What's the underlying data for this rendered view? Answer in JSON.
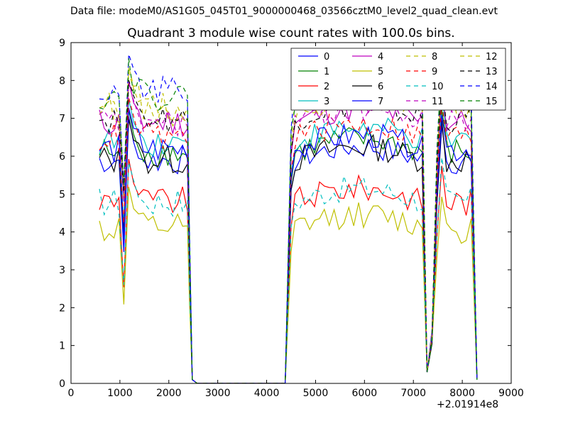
{
  "header": {
    "suptitle": "Data file: modeM0/AS1G05_045T01_9000000468_03566cztM0_level2_quad_clean.evt"
  },
  "chart_data": {
    "type": "line",
    "title": "Quadrant 3 module wise count rates with 100.0s bins.",
    "xlabel": "",
    "ylabel": "",
    "x_offset_label": "+2.01914e8",
    "xlim": [
      0,
      9000
    ],
    "ylim": [
      0,
      9
    ],
    "x_ticks": [
      "0",
      "1000",
      "2000",
      "3000",
      "4000",
      "5000",
      "6000",
      "7000",
      "8000",
      "9000"
    ],
    "y_ticks": [
      "0",
      "1",
      "2",
      "3",
      "4",
      "5",
      "6",
      "7",
      "8",
      "9"
    ],
    "legend_position": "top-right",
    "segments": [
      {
        "x_start": 580,
        "x_end": 2480,
        "zero_after": [
          2580,
          4380
        ],
        "rise_from": 4380,
        "x2_start": 4580,
        "x2_end": 7180,
        "dip": 7300,
        "x3_start": 7580,
        "x3_end": 8280
      }
    ],
    "series": [
      {
        "name": "0",
        "color": "#0000ff",
        "dash": "solid",
        "level": 5.9
      },
      {
        "name": "1",
        "color": "#008000",
        "dash": "solid",
        "level": 6.1
      },
      {
        "name": "2",
        "color": "#ff0000",
        "dash": "solid",
        "level": 4.8
      },
      {
        "name": "3",
        "color": "#00bfbf",
        "dash": "solid",
        "level": 6.4
      },
      {
        "name": "4",
        "color": "#bf00bf",
        "dash": "solid",
        "level": 6.9
      },
      {
        "name": "5",
        "color": "#bfbf00",
        "dash": "solid",
        "level": 4.1
      },
      {
        "name": "6",
        "color": "#000000",
        "dash": "solid",
        "level": 5.9
      },
      {
        "name": "7",
        "color": "#0000ff",
        "dash": "solid",
        "level": 6.2
      },
      {
        "name": "8",
        "color": "#bfbf00",
        "dash": "dashed",
        "level": 7.3
      },
      {
        "name": "9",
        "color": "#ff0000",
        "dash": "dashed",
        "level": 6.5
      },
      {
        "name": "10",
        "color": "#00bfbf",
        "dash": "dashed",
        "level": 4.8
      },
      {
        "name": "11",
        "color": "#bf00bf",
        "dash": "dashed",
        "level": 6.9
      },
      {
        "name": "12",
        "color": "#bfbf00",
        "dash": "dashed",
        "level": 7.2
      },
      {
        "name": "13",
        "color": "#000000",
        "dash": "dashed",
        "level": 7.0
      },
      {
        "name": "14",
        "color": "#0000ff",
        "dash": "dashed",
        "level": 7.7
      },
      {
        "name": "15",
        "color": "#008000",
        "dash": "dashed",
        "level": 7.6
      }
    ]
  }
}
